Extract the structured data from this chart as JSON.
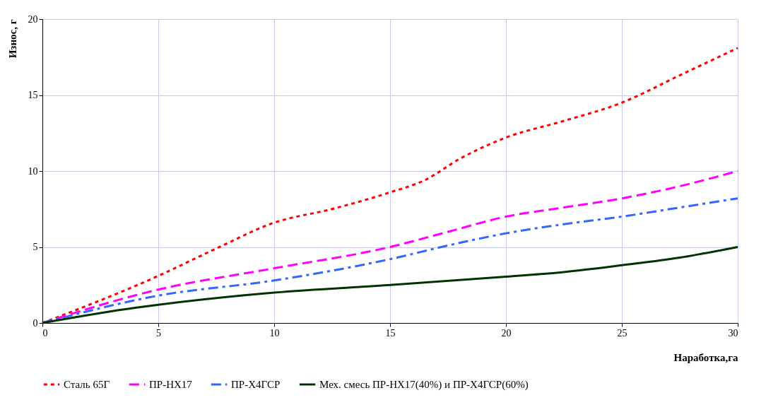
{
  "chart_data": {
    "type": "line",
    "xlabel": "Наработка,га",
    "ylabel": "Износ, г",
    "xlim": [
      0,
      30
    ],
    "xticks": [
      0,
      5,
      10,
      15,
      20,
      25,
      30
    ],
    "ylim": [
      0,
      20
    ],
    "yticks": [
      0,
      5,
      10,
      15,
      20
    ],
    "grid": true,
    "legend": "bottom",
    "marker": "none",
    "series": [
      {
        "name": "Сталь 65Г",
        "color": "#ff0000",
        "line_style": "dotted",
        "x": [
          0,
          5,
          7.5,
          10,
          12.5,
          15,
          16.5,
          18,
          20,
          22.5,
          25,
          27.5,
          30
        ],
        "values": [
          0,
          3.1,
          4.9,
          6.6,
          7.5,
          8.6,
          9.4,
          10.8,
          12.2,
          13.3,
          14.5,
          16.3,
          18.1
        ]
      },
      {
        "name": "ПР-НХ17",
        "color": "#ff00ff",
        "line_style": "dashed",
        "x": [
          0,
          5,
          10,
          15,
          17.5,
          20,
          22.5,
          25,
          27.5,
          30
        ],
        "values": [
          0,
          2.2,
          3.6,
          5.0,
          6.0,
          7.0,
          7.6,
          8.2,
          9.0,
          10.0
        ]
      },
      {
        "name": "ПР-Х4ГСР",
        "color": "#3366ff",
        "line_style": "dashdot",
        "x": [
          0,
          5,
          10,
          15,
          17.5,
          20,
          22.5,
          25,
          27.5,
          30
        ],
        "values": [
          0,
          1.8,
          2.8,
          4.2,
          5.1,
          5.9,
          6.5,
          7.0,
          7.6,
          8.2
        ]
      },
      {
        "name": "Мех. смесь ПР-НХ17(40%) и ПР-Х4ГСР(60%)",
        "color": "#003300",
        "line_style": "solid",
        "x": [
          0,
          4,
          5,
          10,
          15,
          20,
          22.5,
          25,
          27.5,
          30
        ],
        "values": [
          0,
          1.0,
          1.2,
          2.0,
          2.5,
          3.05,
          3.35,
          3.8,
          4.3,
          5.0
        ]
      }
    ]
  }
}
